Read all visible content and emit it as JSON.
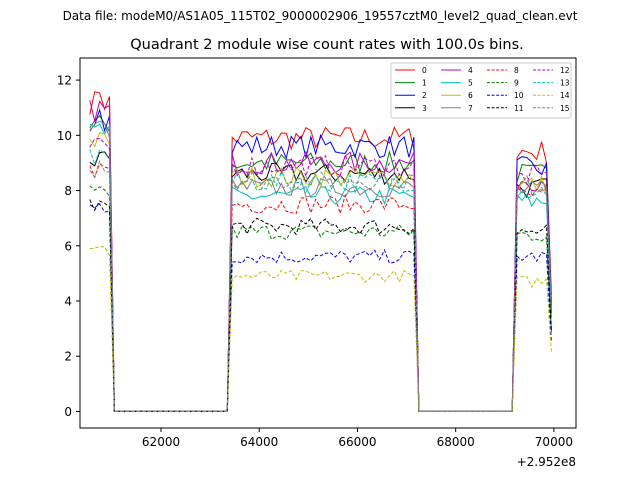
{
  "header": {
    "suptitle": "Data file: modeM0/AS1A05_115T02_9000002906_19557cztM0_level2_quad_clean.evt",
    "title": "Quadrant 2 module wise count rates with 100.0s bins."
  },
  "chart_data": {
    "type": "line",
    "title": "Quadrant 2 module wise count rates with 100.0s bins.",
    "xlabel": "",
    "ylabel": "",
    "x_offset_label": "+2.952e8",
    "xlim": [
      60350,
      70450
    ],
    "ylim": [
      -0.6,
      12.8
    ],
    "xticks": [
      62000,
      64000,
      66000,
      68000,
      70000
    ],
    "xtick_labels": [
      "62000",
      "64000",
      "66000",
      "68000",
      "70000"
    ],
    "yticks": [
      0,
      2,
      4,
      6,
      8,
      10,
      12
    ],
    "ytick_labels": [
      "0",
      "2",
      "4",
      "6",
      "8",
      "10",
      "12"
    ],
    "legend_position": "top-right",
    "segments": [
      {
        "start": 60550,
        "end": 60950
      },
      {
        "start": 63450,
        "end": 67150
      },
      {
        "start": 69250,
        "end": 69950
      }
    ],
    "gap_range": [
      60950,
      63450
    ],
    "gap_range_2": [
      67250,
      69250
    ],
    "series": [
      {
        "name": "0",
        "color": "#ff0000",
        "dash": "solid",
        "segment_levels": [
          11.2,
          9.9,
          9.4
        ]
      },
      {
        "name": "1",
        "color": "#008000",
        "dash": "solid",
        "segment_levels": [
          10.4,
          9.0,
          8.6
        ]
      },
      {
        "name": "2",
        "color": "#0000ff",
        "dash": "solid",
        "segment_levels": [
          10.6,
          9.6,
          8.8
        ]
      },
      {
        "name": "3",
        "color": "#000000",
        "dash": "solid",
        "segment_levels": [
          9.1,
          8.6,
          8.1
        ]
      },
      {
        "name": "4",
        "color": "#bf00bf",
        "dash": "solid",
        "segment_levels": [
          10.9,
          9.0,
          8.4
        ]
      },
      {
        "name": "5",
        "color": "#00bfbf",
        "dash": "solid",
        "segment_levels": [
          10.1,
          7.8,
          7.6
        ]
      },
      {
        "name": "6",
        "color": "#bfbf00",
        "dash": "solid",
        "segment_levels": [
          9.8,
          8.5,
          8.2
        ]
      },
      {
        "name": "7",
        "color": "#808080",
        "dash": "solid",
        "segment_levels": [
          10.2,
          8.1,
          8.0
        ]
      },
      {
        "name": "8",
        "color": "#ff0000",
        "dash": "dashed",
        "segment_levels": [
          8.7,
          7.5,
          7.8
        ]
      },
      {
        "name": "9",
        "color": "#008000",
        "dash": "dashed",
        "segment_levels": [
          7.9,
          6.5,
          6.4
        ]
      },
      {
        "name": "10",
        "color": "#0000ff",
        "dash": "dashed",
        "segment_levels": [
          7.3,
          5.6,
          5.6
        ]
      },
      {
        "name": "11",
        "color": "#000000",
        "dash": "dashed",
        "segment_levels": [
          7.4,
          6.7,
          6.5
        ]
      },
      {
        "name": "12",
        "color": "#bf00bf",
        "dash": "dashed",
        "segment_levels": [
          9.6,
          8.9,
          8.5
        ]
      },
      {
        "name": "13",
        "color": "#00bfbf",
        "dash": "dashed",
        "segment_levels": [
          9.2,
          8.3,
          8.0
        ]
      },
      {
        "name": "14",
        "color": "#bfbf00",
        "dash": "dashed",
        "segment_levels": [
          5.8,
          4.9,
          4.7
        ]
      },
      {
        "name": "15",
        "color": "#808080",
        "dash": "dashed",
        "segment_levels": [
          8.8,
          8.4,
          8.2
        ]
      }
    ]
  }
}
